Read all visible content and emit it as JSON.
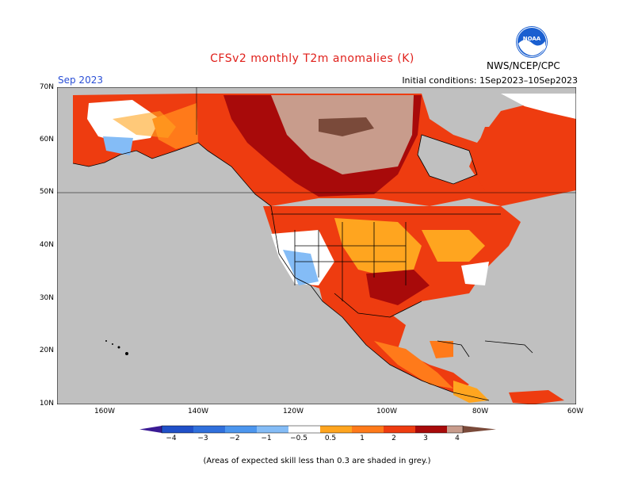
{
  "header": {
    "title": "CFSv2 monthly T2m anomalies (K)",
    "month": "Sep 2023",
    "agency": "NWS/NCEP/CPC",
    "initial_conditions": "Initial conditions: 1Sep2023–10Sep2023",
    "logo_text": "NOAA"
  },
  "map": {
    "lat_labels": [
      "70N",
      "60N",
      "50N",
      "40N",
      "30N",
      "20N",
      "10N"
    ],
    "lon_labels": [
      "160W",
      "140W",
      "120W",
      "100W",
      "80W",
      "60W"
    ],
    "skill_mask_color": "#c0c0c0",
    "ocean_mask_color": "#c0c0c0"
  },
  "colorbar": {
    "labels": [
      "−4",
      "−3",
      "−2",
      "−1",
      "−0.5",
      "0.5",
      "1",
      "2",
      "3",
      "4"
    ],
    "colors": {
      "below_-4": "#3a1a94",
      "-4_-3": "#2050c8",
      "-3_-2": "#3070dc",
      "-2_-1": "#4c96ee",
      "-1_-0.5": "#84bcf6",
      "-0.5_0.5": "#ffffff",
      "0.5_1": "#ffa51f",
      "1_2": "#ff7a1a",
      "2_3": "#ee3c10",
      "3_4": "#a80a0a",
      "above_4a": "#c89c8c",
      "above_4": "#7a4a3a"
    }
  },
  "footer": {
    "note": "(Areas of expected skill less than 0.3 are shaded in grey.)"
  }
}
